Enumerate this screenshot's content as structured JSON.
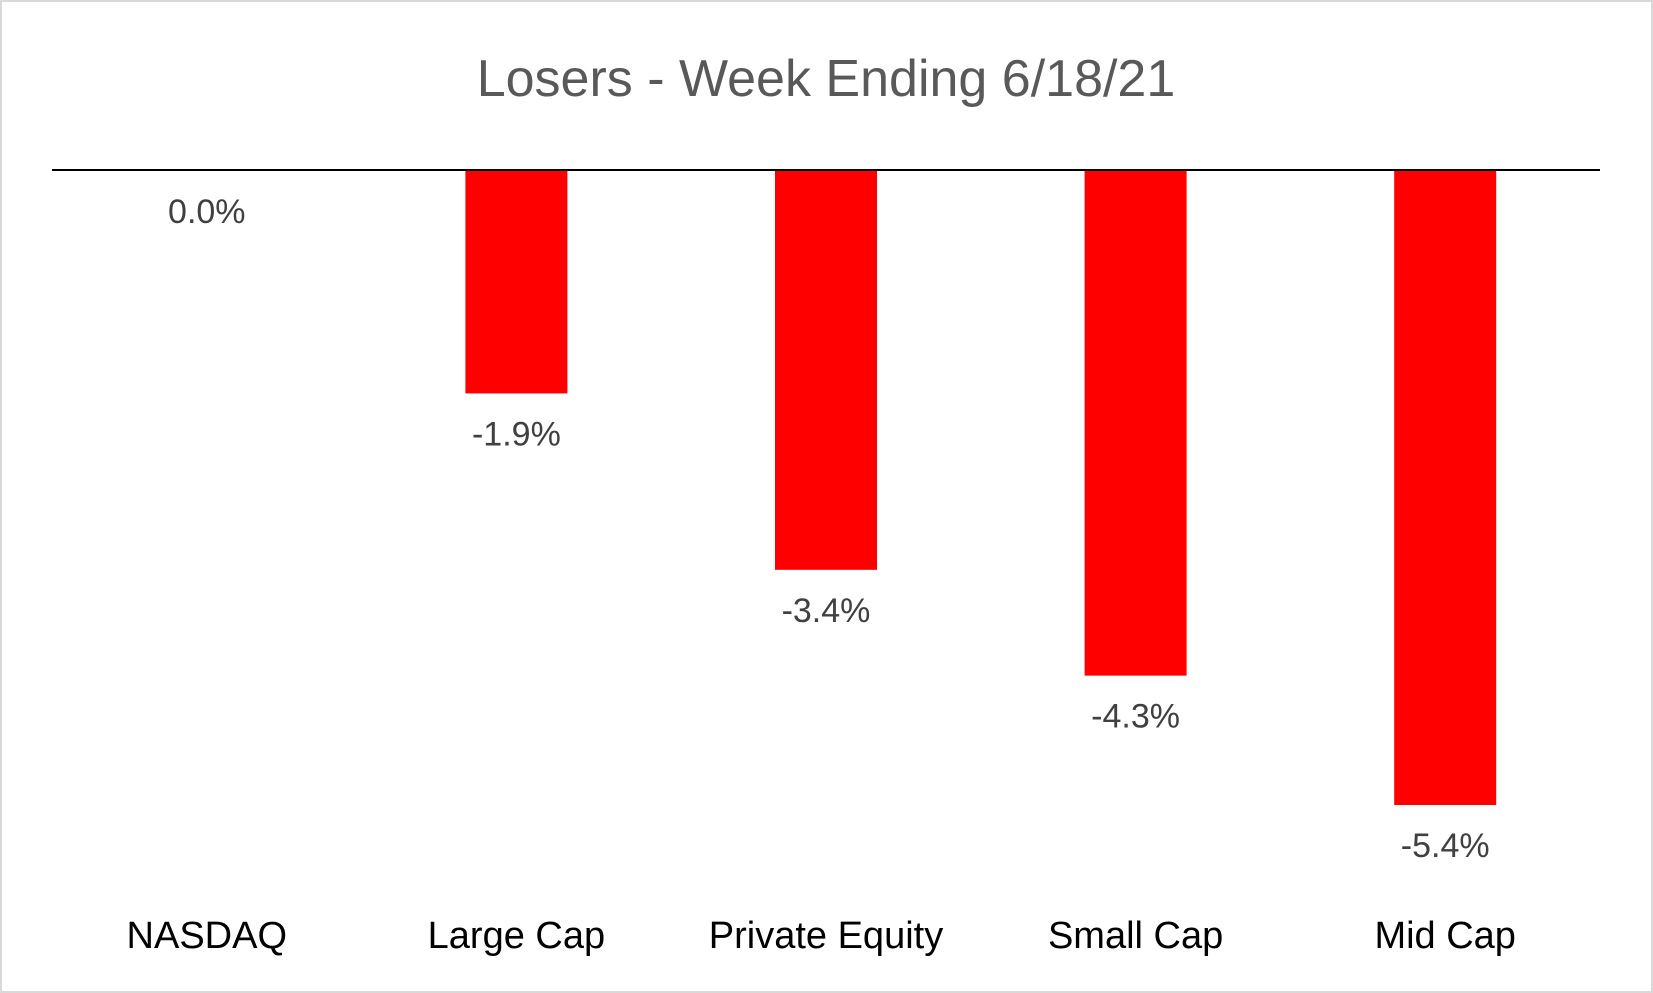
{
  "chart_data": {
    "type": "bar",
    "title": "Losers - Week Ending 6/18/21",
    "categories": [
      "NASDAQ",
      "Large Cap",
      "Private Equity",
      "Small Cap",
      "Mid Cap"
    ],
    "values": [
      0.0,
      -1.9,
      -3.4,
      -4.3,
      -5.4
    ],
    "data_labels": [
      "0.0%",
      "-1.9%",
      "-3.4%",
      "-4.3%",
      "-5.4%"
    ],
    "xlabel": "",
    "ylabel": "",
    "ylim": [
      -5.4,
      0
    ],
    "grid": false,
    "legend": "none",
    "bar_color": "#ff0000"
  }
}
